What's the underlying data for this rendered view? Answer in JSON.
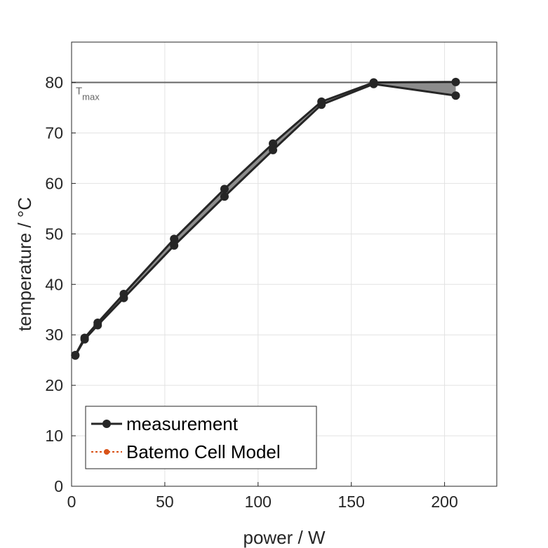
{
  "chart_data": {
    "type": "line",
    "title": "",
    "xlabel": "power / W",
    "ylabel": "temperature / °C",
    "xlim": [
      0,
      228
    ],
    "ylim": [
      0,
      88
    ],
    "xticks": [
      0,
      50,
      100,
      150,
      200
    ],
    "yticks": [
      0,
      10,
      20,
      30,
      40,
      50,
      60,
      70,
      80
    ],
    "grid": true,
    "legend_position": "bottom-left",
    "series": [
      {
        "name": "measurement",
        "color": "#262626",
        "marker": "circle",
        "style": "solid",
        "upper": [
          [
            2,
            26
          ],
          [
            7,
            29.4
          ],
          [
            14,
            32.4
          ],
          [
            28,
            38.1
          ],
          [
            55,
            49
          ],
          [
            82,
            58.9
          ],
          [
            108,
            67.9
          ],
          [
            134,
            76.2
          ],
          [
            162,
            80
          ],
          [
            206,
            80.1
          ]
        ],
        "lower": [
          [
            2,
            25.9
          ],
          [
            7,
            29.1
          ],
          [
            14,
            31.9
          ],
          [
            28,
            37.3
          ],
          [
            55,
            47.7
          ],
          [
            82,
            57.4
          ],
          [
            108,
            66.6
          ],
          [
            134,
            75.6
          ],
          [
            162,
            79.7
          ],
          [
            206,
            77.4
          ]
        ]
      },
      {
        "name": "Batemo Cell Model",
        "color": "#d95319",
        "marker": "circle",
        "style": "dotted",
        "upper": [],
        "lower": []
      }
    ],
    "reference_line": {
      "y": 80,
      "label": "T",
      "label_sub": "max",
      "color": "#666666"
    }
  }
}
